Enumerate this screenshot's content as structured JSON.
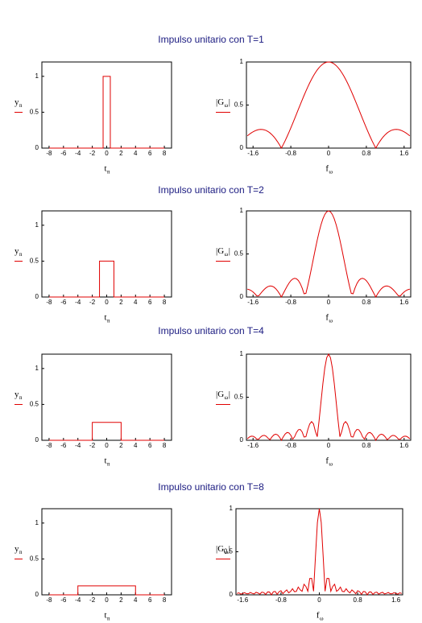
{
  "chart_data": [
    {
      "type": "line",
      "title": "Impulso unitario  con  T=1",
      "x": [
        -8,
        -0.5,
        -0.5,
        0.5,
        0.5,
        8
      ],
      "values": [
        0,
        0,
        1,
        1,
        0,
        0
      ],
      "color": "#e00000",
      "xlim": [
        -9,
        9
      ],
      "ylim": [
        0,
        1.2
      ],
      "xticks": [
        -8,
        -6,
        -4,
        -2,
        0,
        2,
        4,
        6,
        8
      ],
      "yticks": [
        0,
        0.5,
        1
      ],
      "xlabel": "t",
      "xlabel_sub": "n",
      "ylabel": "y",
      "ylabel_sub": "n"
    },
    {
      "type": "line",
      "x": [
        -1.72,
        -1.68,
        -1.64,
        -1.6,
        -1.56,
        -1.52,
        -1.48,
        -1.44,
        -1.4,
        -1.36,
        -1.32,
        -1.28,
        -1.24,
        -1.2,
        -1.16,
        -1.12,
        -1.08,
        -1.04,
        -1,
        -0.96,
        -0.92,
        -0.88,
        -0.84,
        -0.8,
        -0.76,
        -0.72,
        -0.68,
        -0.64,
        -0.6,
        -0.56,
        -0.52,
        -0.48,
        -0.44,
        -0.4,
        -0.36,
        -0.32,
        -0.28,
        -0.24,
        -0.2,
        -0.16,
        -0.12,
        -0.08,
        -0.04,
        0,
        0.04,
        0.08,
        0.12,
        0.16,
        0.2,
        0.24,
        0.28,
        0.32,
        0.36,
        0.4,
        0.44,
        0.48,
        0.52,
        0.56,
        0.6,
        0.64,
        0.68,
        0.72,
        0.76,
        0.8,
        0.84,
        0.88,
        0.92,
        0.96,
        1,
        1.04,
        1.08,
        1.12,
        1.16,
        1.2,
        1.24,
        1.28,
        1.32,
        1.36,
        1.4,
        1.44,
        1.48,
        1.52,
        1.56,
        1.6,
        1.64,
        1.68,
        1.72
      ],
      "values": [
        0.1426,
        0.16,
        0.1756,
        0.1892,
        0.2004,
        0.209,
        0.2147,
        0.2171,
        0.2162,
        0.2118,
        0.2036,
        0.1916,
        0.1757,
        0.1559,
        0.1322,
        0.1046,
        0.0733,
        0.0384,
        0,
        0.0416,
        0.086,
        0.1332,
        0.1826,
        0.2339,
        0.2867,
        0.3406,
        0.3952,
        0.45,
        0.5046,
        0.5583,
        0.6109,
        0.6618,
        0.7106,
        0.7568,
        0.8001,
        0.8399,
        0.8759,
        0.9079,
        0.9355,
        0.9584,
        0.9765,
        0.9895,
        0.9974,
        1,
        0.9974,
        0.9895,
        0.9765,
        0.9584,
        0.9355,
        0.9079,
        0.8759,
        0.8399,
        0.8001,
        0.7568,
        0.7106,
        0.6618,
        0.6109,
        0.5583,
        0.5046,
        0.45,
        0.3952,
        0.3406,
        0.2867,
        0.2339,
        0.1826,
        0.1332,
        0.086,
        0.0416,
        0,
        0.0384,
        0.0733,
        0.1046,
        0.1322,
        0.1559,
        0.1757,
        0.1916,
        0.2036,
        0.2118,
        0.2162,
        0.2171,
        0.2147,
        0.209,
        0.2004,
        0.1892,
        0.1756,
        0.16,
        0.1426
      ],
      "color": "#e00000",
      "xlim": [
        -1.74,
        1.74
      ],
      "ylim": [
        0,
        1
      ],
      "xticks": [
        -1.6,
        -0.8,
        0,
        0.8,
        1.6
      ],
      "yticks": [
        0,
        0.5,
        1
      ],
      "xlabel": "f",
      "xlabel_sub": "ω",
      "ylabel": "|G",
      "ylabel_sub": "ω",
      "ylabel_end": "|"
    },
    {
      "type": "line",
      "title": "Impulso unitario  con  T=2",
      "x": [
        -8,
        -1,
        -1,
        1,
        1,
        8
      ],
      "values": [
        0,
        0,
        0.5,
        0.5,
        0,
        0
      ],
      "color": "#e00000",
      "xlim": [
        -9,
        9
      ],
      "ylim": [
        0,
        1.2
      ],
      "xticks": [
        -8,
        -6,
        -4,
        -2,
        0,
        2,
        4,
        6,
        8
      ],
      "yticks": [
        0,
        0.5,
        1
      ],
      "xlabel": "t",
      "xlabel_sub": "n",
      "ylabel": "y",
      "ylabel_sub": "n"
    },
    {
      "type": "line",
      "x": [
        -1.72,
        -1.68,
        -1.64,
        -1.6,
        -1.56,
        -1.52,
        -1.48,
        -1.44,
        -1.4,
        -1.36,
        -1.32,
        -1.28,
        -1.24,
        -1.2,
        -1.16,
        -1.12,
        -1.08,
        -1.04,
        -1,
        -0.96,
        -0.92,
        -0.88,
        -0.84,
        -0.8,
        -0.76,
        -0.72,
        -0.68,
        -0.64,
        -0.6,
        -0.56,
        -0.52,
        -0.48,
        -0.44,
        -0.4,
        -0.36,
        -0.32,
        -0.28,
        -0.24,
        -0.2,
        -0.16,
        -0.12,
        -0.08,
        -0.04,
        0,
        0.04,
        0.08,
        0.12,
        0.16,
        0.2,
        0.24,
        0.28,
        0.32,
        0.36,
        0.4,
        0.44,
        0.48,
        0.52,
        0.56,
        0.6,
        0.64,
        0.68,
        0.72,
        0.76,
        0.8,
        0.84,
        0.88,
        0.92,
        0.96,
        1,
        1.04,
        1.08,
        1.12,
        1.16,
        1.2,
        1.24,
        1.28,
        1.32,
        1.36,
        1.4,
        1.44,
        1.48,
        1.52,
        1.56,
        1.6,
        1.64,
        1.68,
        1.72
      ],
      "values": [
        0.0909,
        0.0857,
        0.0748,
        0.0585,
        0.0376,
        0.0131,
        0.0135,
        0.0407,
        0.0668,
        0.0902,
        0.1091,
        0.1221,
        0.1281,
        0.1261,
        0.1158,
        0.0973,
        0.071,
        0.0381,
        0,
        0.0412,
        0.0833,
        0.1238,
        0.16,
        0.1892,
        0.209,
        0.2171,
        0.2118,
        0.1916,
        0.1559,
        0.1046,
        0.0384,
        0.0416,
        0.1332,
        0.2339,
        0.3406,
        0.45,
        0.5583,
        0.6618,
        0.7568,
        0.8399,
        0.9079,
        0.9584,
        0.9895,
        1,
        0.9895,
        0.9584,
        0.9079,
        0.8399,
        0.7568,
        0.6618,
        0.5583,
        0.45,
        0.3406,
        0.2339,
        0.1332,
        0.0416,
        0.0384,
        0.1046,
        0.1559,
        0.1916,
        0.2118,
        0.2171,
        0.209,
        0.1892,
        0.16,
        0.1238,
        0.0833,
        0.0412,
        0,
        0.0381,
        0.071,
        0.0973,
        0.1158,
        0.1261,
        0.1281,
        0.1221,
        0.1091,
        0.0902,
        0.0668,
        0.0407,
        0.0135,
        0.0131,
        0.0376,
        0.0585,
        0.0748,
        0.0857,
        0.0909
      ],
      "color": "#e00000",
      "xlim": [
        -1.74,
        1.74
      ],
      "ylim": [
        0,
        1
      ],
      "xticks": [
        -1.6,
        -0.8,
        0,
        0.8,
        1.6
      ],
      "yticks": [
        0,
        0.5,
        1
      ],
      "xlabel": "f",
      "xlabel_sub": "ω",
      "ylabel": "|G",
      "ylabel_sub": "ω",
      "ylabel_end": "|"
    },
    {
      "type": "line",
      "title": "Impulso unitario  con  T=4",
      "x": [
        -8,
        -2,
        -2,
        2,
        2,
        8
      ],
      "values": [
        0,
        0,
        0.25,
        0.25,
        0,
        0
      ],
      "color": "#e00000",
      "xlim": [
        -9,
        9
      ],
      "ylim": [
        0,
        1.2
      ],
      "xticks": [
        -8,
        -6,
        -4,
        -2,
        0,
        2,
        4,
        6,
        8
      ],
      "yticks": [
        0,
        0.5,
        1
      ],
      "xlabel": "t",
      "xlabel_sub": "n",
      "ylabel": "y",
      "ylabel_sub": "n"
    },
    {
      "type": "line",
      "x": [
        -1.72,
        -1.68,
        -1.64,
        -1.6,
        -1.56,
        -1.52,
        -1.48,
        -1.44,
        -1.4,
        -1.36,
        -1.32,
        -1.28,
        -1.24,
        -1.2,
        -1.16,
        -1.12,
        -1.08,
        -1.04,
        -1,
        -0.96,
        -0.92,
        -0.88,
        -0.84,
        -0.8,
        -0.76,
        -0.72,
        -0.68,
        -0.64,
        -0.6,
        -0.56,
        -0.52,
        -0.48,
        -0.44,
        -0.4,
        -0.36,
        -0.32,
        -0.28,
        -0.24,
        -0.2,
        -0.16,
        -0.12,
        -0.08,
        -0.04,
        0,
        0.04,
        0.08,
        0.12,
        0.16,
        0.2,
        0.24,
        0.28,
        0.32,
        0.36,
        0.4,
        0.44,
        0.48,
        0.52,
        0.56,
        0.6,
        0.64,
        0.68,
        0.72,
        0.76,
        0.8,
        0.84,
        0.88,
        0.92,
        0.96,
        1,
        1.04,
        1.08,
        1.12,
        1.16,
        1.2,
        1.24,
        1.28,
        1.32,
        1.36,
        1.4,
        1.44,
        1.48,
        1.52,
        1.56,
        1.6,
        1.64,
        1.68,
        1.72
      ],
      "values": [
        0.017,
        0.0365,
        0.0477,
        0.0473,
        0.0349,
        0.013,
        0.0134,
        0.0378,
        0.0541,
        0.0575,
        0.0465,
        0.0229,
        0.008,
        0.039,
        0.0621,
        0.0709,
        0.0622,
        0.0369,
        0,
        0.0399,
        0.073,
        0.0903,
        0.0857,
        0.0585,
        0.0131,
        0.0407,
        0.0902,
        0.1221,
        0.1261,
        0.0973,
        0.0381,
        0.0412,
        0.1238,
        0.1892,
        0.2171,
        0.1916,
        0.1046,
        0.0416,
        0.2339,
        0.45,
        0.6618,
        0.8399,
        0.9584,
        1,
        0.9584,
        0.8399,
        0.6618,
        0.45,
        0.2339,
        0.0416,
        0.1046,
        0.1916,
        0.2171,
        0.1892,
        0.1238,
        0.0412,
        0.0381,
        0.0973,
        0.1261,
        0.1221,
        0.0902,
        0.0407,
        0.0131,
        0.0585,
        0.0857,
        0.0903,
        0.073,
        0.0399,
        0,
        0.0369,
        0.0622,
        0.0709,
        0.0621,
        0.039,
        0.008,
        0.0229,
        0.0465,
        0.0575,
        0.0541,
        0.0378,
        0.0134,
        0.013,
        0.0349,
        0.0473,
        0.0477,
        0.0365,
        0.017
      ],
      "color": "#e00000",
      "xlim": [
        -1.74,
        1.74
      ],
      "ylim": [
        0,
        1
      ],
      "xticks": [
        -1.6,
        -0.8,
        0,
        0.8,
        1.6
      ],
      "yticks": [
        0,
        0.5,
        1
      ],
      "xlabel": "f",
      "xlabel_sub": "ω",
      "ylabel": "|G",
      "ylabel_sub": "ω",
      "ylabel_end": "|"
    },
    {
      "type": "line",
      "title": "Impulso unitario  con  T=8",
      "x": [
        -8,
        -4,
        -4,
        4,
        4,
        8
      ],
      "values": [
        0,
        0,
        0.125,
        0.125,
        0,
        0
      ],
      "color": "#e00000",
      "xlim": [
        -9,
        9
      ],
      "ylim": [
        0,
        1.2
      ],
      "xticks": [
        -8,
        -6,
        -4,
        -2,
        0,
        2,
        4,
        6,
        8
      ],
      "yticks": [
        0,
        0.5,
        1
      ],
      "xlabel": "t",
      "xlabel_sub": "n",
      "ylabel": "y",
      "ylabel_sub": "n"
    },
    {
      "type": "line",
      "x": [
        -1.72,
        -1.68,
        -1.64,
        -1.6,
        -1.56,
        -1.52,
        -1.48,
        -1.44,
        -1.4,
        -1.36,
        -1.32,
        -1.28,
        -1.24,
        -1.2,
        -1.16,
        -1.12,
        -1.08,
        -1.04,
        -1,
        -0.96,
        -0.92,
        -0.88,
        -0.84,
        -0.8,
        -0.76,
        -0.72,
        -0.68,
        -0.64,
        -0.6,
        -0.56,
        -0.52,
        -0.48,
        -0.44,
        -0.4,
        -0.36,
        -0.32,
        -0.28,
        -0.24,
        -0.2,
        -0.16,
        -0.12,
        -0.08,
        -0.04,
        0,
        0.04,
        0.08,
        0.12,
        0.16,
        0.2,
        0.24,
        0.28,
        0.32,
        0.36,
        0.4,
        0.44,
        0.48,
        0.52,
        0.56,
        0.6,
        0.64,
        0.68,
        0.72,
        0.76,
        0.8,
        0.84,
        0.88,
        0.92,
        0.96,
        1,
        1.04,
        1.08,
        1.12,
        1.16,
        1.2,
        1.24,
        1.28,
        1.32,
        1.36,
        1.4,
        1.44,
        1.48,
        1.52,
        1.56,
        1.6,
        1.64,
        1.68,
        1.72
      ],
      "values": [
        0.0158,
        0.0233,
        0.0089,
        0.0146,
        0.0255,
        0.0126,
        0.013,
        0.0276,
        0.0167,
        0.0108,
        0.0296,
        0.0213,
        0.008,
        0.0315,
        0.0264,
        0.0045,
        0.0333,
        0.0323,
        0,
        0.035,
        0.0391,
        0.0057,
        0.0365,
        0.0473,
        0.013,
        0.0378,
        0.0575,
        0.0229,
        0.039,
        0.0709,
        0.0369,
        0.0399,
        0.0903,
        0.0585,
        0.0407,
        0.1221,
        0.0973,
        0.0412,
        0.1892,
        0.1916,
        0.0416,
        0.45,
        0.8399,
        1,
        0.8399,
        0.45,
        0.0416,
        0.1916,
        0.1892,
        0.0412,
        0.0973,
        0.1221,
        0.0407,
        0.0585,
        0.0903,
        0.0399,
        0.0369,
        0.0709,
        0.039,
        0.0229,
        0.0575,
        0.0378,
        0.013,
        0.0473,
        0.0365,
        0.0057,
        0.0391,
        0.035,
        0,
        0.0323,
        0.0333,
        0.0045,
        0.0264,
        0.0315,
        0.008,
        0.0213,
        0.0296,
        0.0108,
        0.0167,
        0.0276,
        0.013,
        0.0126,
        0.0255,
        0.0146,
        0.0089,
        0.0233,
        0.0158
      ],
      "color": "#e00000",
      "xlim": [
        -1.74,
        1.74
      ],
      "ylim": [
        0,
        1
      ],
      "xticks": [
        -1.6,
        -0.8,
        0,
        0.8,
        1.6
      ],
      "yticks": [
        0,
        0.5,
        1
      ],
      "xlabel": "f",
      "xlabel_sub": "ω",
      "ylabel": "|G",
      "ylabel_sub": "ω",
      "ylabel_end": "|"
    }
  ]
}
